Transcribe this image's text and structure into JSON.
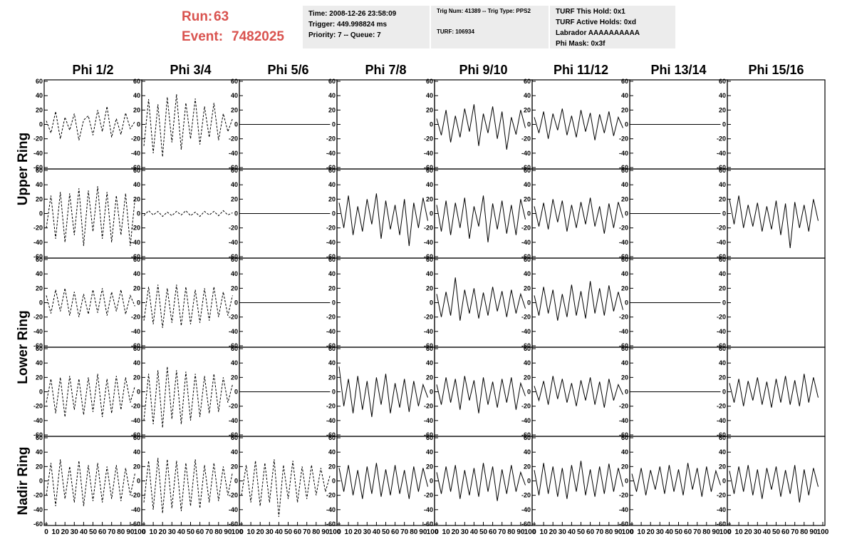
{
  "header": {
    "run_label": "Run:",
    "run": "63",
    "event_label": "Event:",
    "event": "7482025",
    "box1": [
      "Time: 2008-12-26 23:58:09",
      "Trigger: 449.998824 ms",
      "Priority: 7 -- Queue: 7"
    ],
    "box2": [
      "Trig Num: 41389 -- Trig Type: PPS2",
      "TURF: 106934"
    ],
    "box3": [
      "TURF This Hold: 0x1",
      "TURF Active Holds: 0xd",
      "Labrador AAAAAAAAAA",
      "Phi Mask: 0x3f"
    ]
  },
  "columns": [
    "Phi 1/2",
    "Phi 3/4",
    "Phi 5/6",
    "Phi 7/8",
    "Phi 9/10",
    "Phi 11/12",
    "Phi 13/14",
    "Phi 15/16"
  ],
  "rings": [
    "Upper Ring",
    "Lower Ring",
    "Nadir Ring"
  ],
  "ylim": [
    -62,
    62
  ],
  "yticks": [
    -60,
    -40,
    -20,
    0,
    20,
    40,
    60
  ],
  "xlim": [
    0,
    100
  ],
  "xticks": [
    0,
    10,
    20,
    30,
    40,
    50,
    60,
    70,
    80,
    90,
    100
  ],
  "x": [
    0,
    5,
    10,
    15,
    20,
    25,
    30,
    35,
    40,
    45,
    50,
    55,
    60,
    65,
    70,
    75,
    80,
    85,
    90,
    95
  ],
  "panels": [
    {
      "style": "dashed",
      "values": [
        5,
        -12,
        18,
        -20,
        10,
        -8,
        15,
        -22,
        6,
        12,
        -15,
        20,
        -10,
        25,
        -18,
        8,
        -14,
        16,
        -6,
        4
      ]
    },
    {
      "style": "dashed",
      "values": [
        -30,
        35,
        -40,
        28,
        -45,
        38,
        -25,
        42,
        -35,
        30,
        -20,
        36,
        -28,
        25,
        -18,
        30,
        -22,
        15,
        -10,
        8
      ]
    },
    {
      "style": "solid",
      "values": [
        0,
        0,
        0,
        0,
        0,
        0,
        0,
        0,
        0,
        0,
        0,
        0,
        0,
        0,
        0,
        0,
        0,
        0,
        0,
        0
      ]
    },
    {
      "style": "solid"
    },
    {
      "style": "solid",
      "values": [
        8,
        -15,
        20,
        -25,
        12,
        -18,
        22,
        -10,
        28,
        -30,
        15,
        -12,
        25,
        -20,
        18,
        -35,
        10,
        -14,
        20,
        -5
      ]
    },
    {
      "style": "solid",
      "values": [
        10,
        -12,
        18,
        -20,
        15,
        -8,
        22,
        -15,
        12,
        -18,
        20,
        -10,
        16,
        -22,
        14,
        -12,
        18,
        -16,
        10,
        -5
      ]
    },
    {
      "style": "solid",
      "values": [
        0,
        0,
        0,
        0,
        0,
        0,
        0,
        0,
        0,
        0,
        0,
        0,
        0,
        0,
        0,
        0,
        0,
        0,
        0,
        0
      ]
    },
    {
      "style": "solid"
    },
    {
      "style": "dashed",
      "values": [
        -20,
        25,
        -35,
        30,
        -40,
        28,
        -30,
        35,
        -45,
        32,
        -25,
        38,
        -35,
        30,
        -40,
        25,
        -30,
        28,
        -45,
        20
      ]
    },
    {
      "style": "dashed",
      "values": [
        -3,
        4,
        -2,
        3,
        -4,
        2,
        -3,
        3,
        -2,
        4,
        -3,
        2,
        -4,
        3,
        -2,
        3,
        -3,
        4,
        -2,
        1
      ]
    },
    {
      "style": "solid",
      "values": [
        0,
        0,
        0,
        0,
        0,
        0,
        0,
        0,
        0,
        0,
        0,
        0,
        0,
        0,
        0,
        0,
        0,
        0,
        0,
        0
      ]
    },
    {
      "style": "solid",
      "values": [
        15,
        -20,
        25,
        -30,
        10,
        -25,
        20,
        -15,
        28,
        -35,
        18,
        -22,
        12,
        -30,
        20,
        -45,
        15,
        -20,
        22,
        -10
      ]
    },
    {
      "style": "solid",
      "values": [
        12,
        -25,
        18,
        -30,
        15,
        -20,
        22,
        -35,
        10,
        -18,
        25,
        -40,
        14,
        -22,
        18,
        -28,
        12,
        -30,
        20,
        -8
      ]
    },
    {
      "style": "solid",
      "values": [
        10,
        -18,
        15,
        -22,
        20,
        -12,
        18,
        -25,
        12,
        -20,
        16,
        -15,
        22,
        -18,
        10,
        -28,
        14,
        -20,
        16,
        -6
      ]
    },
    {
      "style": "solid",
      "values": [
        0,
        0,
        0,
        0,
        0,
        0,
        0,
        0,
        0,
        0,
        0,
        0,
        0,
        0,
        0,
        0,
        0,
        0,
        0,
        0
      ]
    },
    {
      "style": "solid",
      "values": [
        20,
        -15,
        25,
        -20,
        12,
        -18,
        15,
        -25,
        10,
        -22,
        18,
        -30,
        14,
        -48,
        16,
        -20,
        12,
        -25,
        20,
        -10
      ]
    },
    {
      "style": "dashed",
      "values": [
        10,
        -15,
        18,
        -12,
        20,
        -18,
        15,
        -20,
        12,
        -16,
        18,
        -14,
        20,
        -18,
        15,
        -12,
        18,
        -16,
        10,
        -5
      ]
    },
    {
      "style": "dashed",
      "values": [
        -25,
        22,
        -30,
        25,
        -35,
        20,
        -28,
        25,
        -32,
        22,
        -30,
        18,
        -28,
        20,
        -25,
        22,
        -20,
        15,
        -18,
        10
      ]
    },
    {
      "style": "solid",
      "values": [
        0,
        0,
        0,
        0,
        0,
        0,
        0,
        0,
        0,
        0,
        0,
        0,
        0,
        0,
        0,
        0,
        0,
        0,
        0,
        0
      ]
    },
    {
      "style": "solid"
    },
    {
      "style": "solid",
      "values": [
        12,
        -20,
        15,
        -18,
        35,
        -25,
        18,
        -15,
        20,
        -22,
        14,
        -18,
        22,
        -12,
        16,
        -20,
        18,
        -15,
        12,
        -8
      ]
    },
    {
      "style": "solid",
      "values": [
        10,
        -18,
        22,
        -15,
        18,
        -25,
        12,
        -20,
        25,
        -18,
        16,
        -22,
        30,
        -15,
        20,
        -18,
        24,
        -12,
        15,
        -10
      ]
    },
    {
      "style": "solid",
      "values": [
        0,
        0,
        0,
        0,
        0,
        0,
        0,
        0,
        0,
        0,
        0,
        0,
        0,
        0,
        0,
        0,
        0,
        0,
        0,
        0
      ]
    },
    {
      "style": "solid"
    },
    {
      "style": "dashed",
      "values": [
        -15,
        18,
        -30,
        20,
        -35,
        22,
        -25,
        18,
        -32,
        20,
        -28,
        25,
        -35,
        18,
        -30,
        22,
        -25,
        20,
        -15,
        8
      ]
    },
    {
      "style": "dashed",
      "values": [
        -40,
        25,
        -45,
        30,
        -50,
        35,
        -38,
        30,
        -45,
        28,
        -40,
        25,
        -35,
        22,
        -30,
        25,
        -28,
        20,
        -15,
        10
      ]
    },
    {
      "style": "solid",
      "values": [
        0,
        0,
        0,
        0,
        0,
        0,
        0,
        0,
        0,
        0,
        0,
        0,
        0,
        0,
        0,
        0,
        0,
        0,
        0,
        0
      ]
    },
    {
      "style": "solid",
      "values": [
        35,
        -20,
        18,
        -30,
        22,
        -25,
        15,
        -35,
        20,
        -18,
        25,
        -30,
        12,
        -22,
        18,
        -28,
        15,
        -20,
        10,
        -8
      ]
    },
    {
      "style": "solid",
      "values": [
        10,
        -18,
        20,
        -15,
        18,
        -25,
        22,
        -12,
        16,
        -30,
        20,
        -18,
        14,
        -22,
        18,
        -15,
        20,
        -25,
        12,
        -6
      ]
    },
    {
      "style": "solid",
      "values": [
        8,
        -12,
        15,
        -18,
        22,
        -10,
        18,
        -15,
        12,
        -20,
        16,
        -12,
        20,
        -18,
        14,
        -22,
        18,
        -12,
        10,
        -4
      ]
    },
    {
      "style": "solid",
      "values": [
        0,
        0,
        0,
        0,
        0,
        0,
        0,
        0,
        0,
        0,
        0,
        0,
        0,
        0,
        0,
        0,
        0,
        0,
        0,
        0
      ]
    },
    {
      "style": "solid",
      "values": [
        12,
        -15,
        18,
        -20,
        15,
        -12,
        20,
        -18,
        14,
        -22,
        18,
        -15,
        22,
        -18,
        16,
        -20,
        25,
        -15,
        20,
        -8
      ]
    },
    {
      "style": "dashed",
      "values": [
        -20,
        25,
        -35,
        30,
        -25,
        20,
        -30,
        28,
        -35,
        22,
        -28,
        25,
        -30,
        20,
        -25,
        22,
        -28,
        18,
        -20,
        10
      ]
    },
    {
      "style": "dashed",
      "values": [
        -30,
        28,
        -40,
        32,
        -45,
        30,
        -38,
        28,
        -42,
        25,
        -35,
        30,
        -38,
        22,
        -30,
        25,
        -28,
        20,
        -20,
        12
      ]
    },
    {
      "style": "dashed",
      "values": [
        -20,
        22,
        -30,
        28,
        -35,
        25,
        -30,
        30,
        -50,
        22,
        -25,
        28,
        -30,
        20,
        -25,
        22,
        -20,
        18,
        -15,
        8
      ]
    },
    {
      "style": "solid",
      "values": [
        18,
        -15,
        22,
        -20,
        15,
        -25,
        20,
        -18,
        25,
        -22,
        16,
        -20,
        22,
        -18,
        15,
        -25,
        20,
        -15,
        18,
        -8
      ]
    },
    {
      "style": "solid",
      "values": [
        12,
        -18,
        20,
        -15,
        22,
        -25,
        15,
        -20,
        18,
        -22,
        25,
        -15,
        20,
        -28,
        16,
        -18,
        22,
        -15,
        12,
        -6
      ]
    },
    {
      "style": "solid",
      "values": [
        15,
        -20,
        25,
        -18,
        20,
        -22,
        18,
        -25,
        22,
        -15,
        28,
        -20,
        16,
        -22,
        20,
        -18,
        24,
        -15,
        18,
        -8
      ]
    },
    {
      "style": "solid",
      "values": [
        10,
        -15,
        18,
        -20,
        15,
        -12,
        20,
        -18,
        22,
        -15,
        16,
        -20,
        25,
        -12,
        18,
        -22,
        20,
        -15,
        14,
        -6
      ]
    },
    {
      "style": "solid",
      "values": [
        14,
        -18,
        20,
        -15,
        22,
        -20,
        16,
        -25,
        18,
        -12,
        20,
        -22,
        15,
        -18,
        22,
        -30,
        16,
        -20,
        18,
        -8
      ]
    }
  ]
}
